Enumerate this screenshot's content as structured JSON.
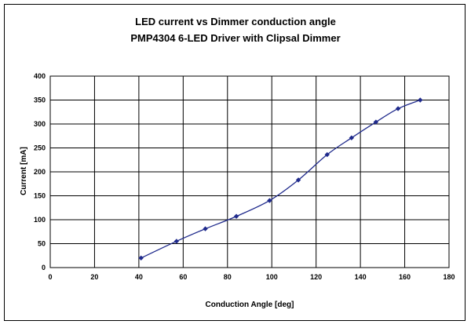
{
  "chart_data": {
    "type": "line",
    "title": "LED current vs Dimmer conduction angle",
    "subtitle": "PMP4304 6-LED Driver with Clipsal Dimmer",
    "xlabel": "Conduction Angle [deg]",
    "ylabel": "Current [mA]",
    "xlim": [
      0,
      180
    ],
    "ylim": [
      0,
      400
    ],
    "xticks": [
      "0",
      "20",
      "40",
      "60",
      "80",
      "100",
      "120",
      "140",
      "160",
      "180"
    ],
    "yticks": [
      "0",
      "50",
      "100",
      "150",
      "200",
      "250",
      "300",
      "350",
      "400"
    ],
    "grid": true,
    "legend": "none",
    "series": [
      {
        "color": "#1f2a8c",
        "x": [
          41,
          57,
          70,
          84,
          99,
          112,
          125,
          136,
          147,
          157,
          167
        ],
        "y": [
          20,
          55,
          81,
          107,
          140,
          183,
          236,
          271,
          304,
          332,
          350
        ]
      }
    ]
  }
}
